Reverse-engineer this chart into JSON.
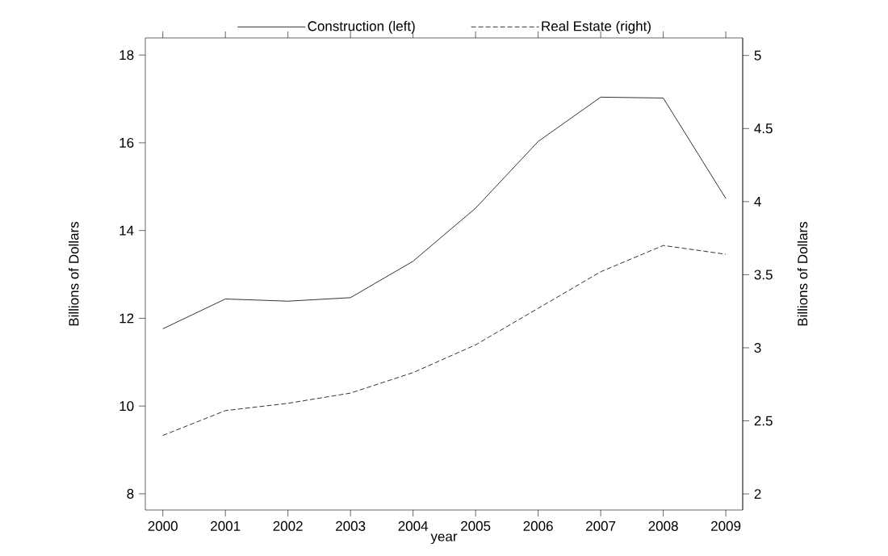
{
  "chart_data": {
    "type": "line",
    "xlabel": "year",
    "ylabel": "Billions of Dollars",
    "y2label": "Billions of Dollars",
    "legend": "top",
    "x": [
      2000,
      2001,
      2002,
      2003,
      2004,
      2005,
      2006,
      2007,
      2008,
      2009
    ],
    "xlim": [
      1999.72,
      2009.27
    ],
    "xticks": [
      2000,
      2001,
      2002,
      2003,
      2004,
      2005,
      2006,
      2007,
      2008,
      2009
    ],
    "ylim": [
      7.63,
      18.39
    ],
    "yticks": [
      8,
      10,
      12,
      14,
      16,
      18
    ],
    "y2lim": [
      1.89,
      5.12
    ],
    "y2ticks": [
      2,
      2.5,
      3,
      3.5,
      4,
      4.5,
      5
    ],
    "series": [
      {
        "name": "Construction (left)",
        "color": "#000000",
        "line_style": "solid",
        "values": [
          11.76,
          12.44,
          12.39,
          12.47,
          13.3,
          14.51,
          16.03,
          17.04,
          17.02,
          14.73
        ]
      },
      {
        "name": "Real Estate (right)",
        "color": "#000000",
        "line_style": "dashed",
        "axis": "y2",
        "values": [
          2.4,
          2.57,
          2.62,
          2.69,
          2.83,
          3.02,
          3.27,
          3.52,
          3.7,
          3.64
        ]
      }
    ]
  }
}
